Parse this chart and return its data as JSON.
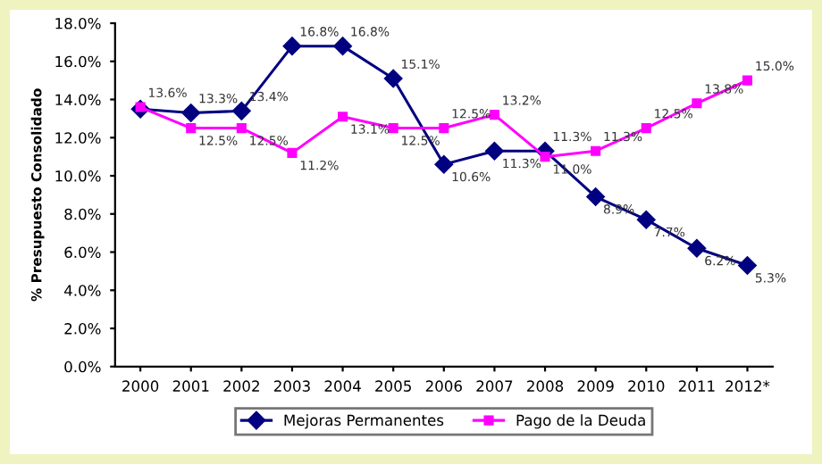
{
  "chart_data": {
    "type": "line",
    "ylabel": "% Presupuesto Consolidado",
    "categories": [
      "2000",
      "2001",
      "2002",
      "2003",
      "2004",
      "2005",
      "2006",
      "2007",
      "2008",
      "2009",
      "2010",
      "2011",
      "2012*"
    ],
    "series": [
      {
        "name": "Mejoras Permanentes",
        "color": "#000080",
        "marker": "diamond",
        "values": [
          13.5,
          13.3,
          13.4,
          16.8,
          16.8,
          15.1,
          10.6,
          11.3,
          11.3,
          8.9,
          7.7,
          6.2,
          5.3
        ],
        "value_labels": [
          null,
          "13.3%",
          "13.4%",
          "16.8%",
          "16.8%",
          "15.1%",
          "10.6%",
          "11.3%",
          "11.3%",
          "8.9%",
          "7.7%",
          "6.2%",
          "5.3%"
        ]
      },
      {
        "name": "Pago de la Deuda",
        "color": "#ff00ff",
        "marker": "square",
        "values": [
          13.6,
          12.5,
          12.5,
          11.2,
          13.1,
          12.5,
          12.5,
          13.2,
          11.0,
          11.3,
          12.5,
          13.8,
          15.0
        ],
        "value_labels": [
          "13.6%",
          "12.5%",
          "12.5%",
          "11.2%",
          "13.1%",
          "12.5%",
          "12.5%",
          "13.2%",
          "11.0%",
          "11.3%",
          "12.5%",
          "13.8%",
          "15.0%"
        ]
      }
    ],
    "ylim": [
      0,
      18
    ],
    "yticks": [
      {
        "value": 0,
        "label": "0.0%"
      },
      {
        "value": 2,
        "label": "2.0%"
      },
      {
        "value": 4,
        "label": "4.0%"
      },
      {
        "value": 6,
        "label": "6.0%"
      },
      {
        "value": 8,
        "label": "8.0%"
      },
      {
        "value": 10,
        "label": "10.0%"
      },
      {
        "value": 12,
        "label": "12.0%"
      },
      {
        "value": 14,
        "label": "14.0%"
      },
      {
        "value": 16,
        "label": "16.0%"
      },
      {
        "value": 18,
        "label": "18.0%"
      }
    ],
    "grid": false,
    "legend": "bottom",
    "line_style": "solid"
  }
}
